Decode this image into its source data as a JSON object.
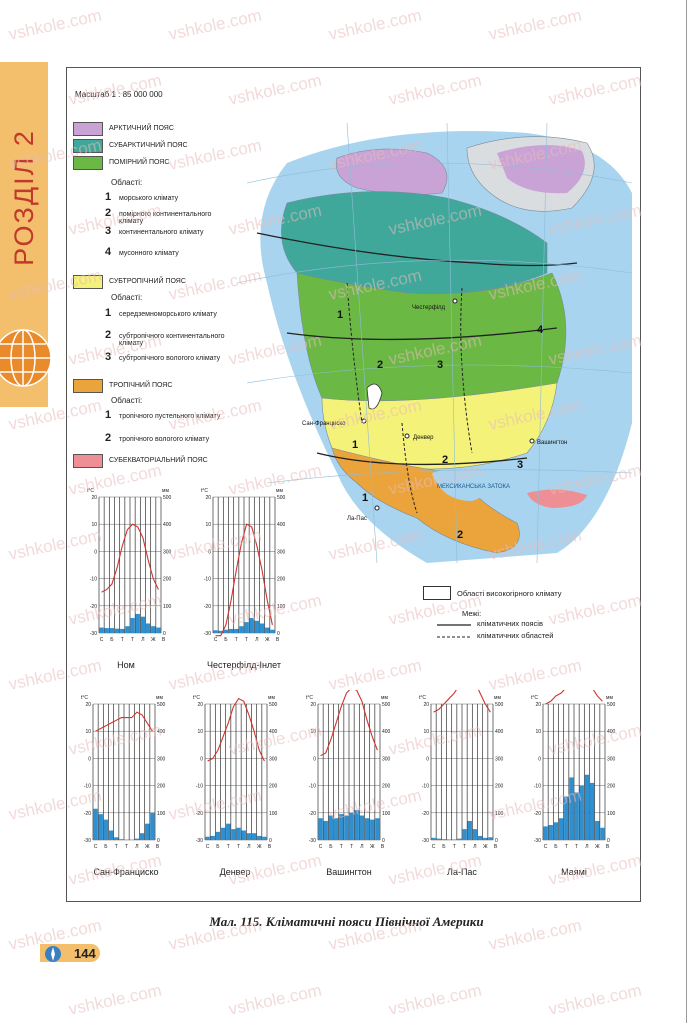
{
  "side_tab": {
    "label": "РОЗДІЛ 2"
  },
  "map": {
    "scale": "Масштаб 1 : 85 000 000",
    "legend": {
      "belts": [
        {
          "label": "АРКТИЧНИЙ ПОЯС",
          "color": "#c9a3d6"
        },
        {
          "label": "СУБАРКТИЧНИЙ ПОЯС",
          "color": "#3fa89b"
        },
        {
          "label": "ПОМІРНИЙ ПОЯС",
          "color": "#6cb845"
        },
        {
          "label": "СУБТРОПІЧНИЙ ПОЯС",
          "color": "#f4f279"
        },
        {
          "label": "ТРОПІЧНИЙ ПОЯС",
          "color": "#eba43b"
        },
        {
          "label": "СУБЕКВАТОРІАЛЬНИЙ ПОЯС",
          "color": "#ee8f96"
        }
      ],
      "regions_heading": "Області:",
      "temperate_regions": [
        {
          "num": "1",
          "label": "морського клімату"
        },
        {
          "num": "2",
          "label": "помірного континентального клімату"
        },
        {
          "num": "3",
          "label": "континентального клімату"
        },
        {
          "num": "4",
          "label": "мусонного клімату"
        }
      ],
      "subtropical_regions": [
        {
          "num": "1",
          "label": "середземноморського клімату"
        },
        {
          "num": "2",
          "label": "субтропічного континентального клімату"
        },
        {
          "num": "3",
          "label": "субтропічного вологого клімату"
        }
      ],
      "tropical_regions": [
        {
          "num": "1",
          "label": "тропічного пустельного клімату"
        },
        {
          "num": "2",
          "label": "тропічного вологого клімату"
        }
      ],
      "highland": "Області високогірного клімату",
      "boundaries_heading": "Межі:",
      "boundary_belts": "кліматичних поясів",
      "boundary_regions": "кліматичних областей"
    },
    "labels": {
      "city_chesterfield": "Честерфілд",
      "city_sf": "Сан-Франциско",
      "city_denver": "Денвер",
      "city_washington": "Вашингтон",
      "city_lv": "Ла-Пас",
      "gulf": "МЕКСИКАНСЬКА ЗАТОКА",
      "n1": "1",
      "n2": "2",
      "n3": "3",
      "n4": "4",
      "s1": "1",
      "s2": "2",
      "s3": "3",
      "t1": "1",
      "t2": "2"
    },
    "colors": {
      "ocean": "#a8d4ef",
      "arctic": "#c9a3d6",
      "subarctic": "#3fa89b",
      "temperate": "#6cb845",
      "subtropical": "#f4f279",
      "tropical": "#eba43b",
      "subequatorial": "#ee8f96",
      "land_grey": "#d9dde0"
    }
  },
  "climate_charts": {
    "t_unit": "t°C",
    "p_unit": "мм",
    "t_ticks": [
      "20",
      "10",
      "0",
      "-10",
      "-20",
      "-30"
    ],
    "p_ticks": [
      "500",
      "400",
      "300",
      "200",
      "100",
      "0"
    ],
    "months": [
      "С",
      "Б",
      "Т",
      "Т",
      "Л",
      "Ж",
      "В"
    ],
    "chart_data": [
      {
        "type": "bar",
        "title": "Ном",
        "temperature": [
          -15,
          -14,
          -12,
          -6,
          2,
          8,
          10,
          9,
          5,
          -3,
          -10,
          -14
        ],
        "precipitation": [
          20,
          18,
          18,
          16,
          15,
          25,
          55,
          70,
          60,
          35,
          25,
          20
        ],
        "t_range": [
          -30,
          20
        ],
        "p_range": [
          0,
          500
        ]
      },
      {
        "type": "bar",
        "title": "Честерфілд-Інлет",
        "temperature": [
          -31,
          -31,
          -27,
          -18,
          -7,
          3,
          10,
          9,
          2,
          -7,
          -18,
          -27
        ],
        "precipitation": [
          10,
          8,
          12,
          15,
          15,
          25,
          40,
          55,
          45,
          35,
          20,
          12
        ],
        "t_range": [
          -30,
          20
        ],
        "p_range": [
          0,
          500
        ]
      },
      {
        "type": "bar",
        "title": "Сан-Франциско",
        "temperature": [
          10,
          11,
          12,
          13,
          14,
          15,
          15,
          15,
          17,
          16,
          13,
          10
        ],
        "precipitation": [
          115,
          95,
          75,
          35,
          10,
          3,
          1,
          1,
          5,
          25,
          60,
          100
        ],
        "t_range": [
          -30,
          20
        ],
        "p_range": [
          0,
          500
        ]
      },
      {
        "type": "bar",
        "title": "Денвер",
        "temperature": [
          -1,
          0,
          3,
          8,
          13,
          19,
          22,
          21,
          16,
          10,
          3,
          -1
        ],
        "precipitation": [
          12,
          15,
          30,
          45,
          60,
          40,
          45,
          35,
          25,
          25,
          15,
          12
        ],
        "t_range": [
          -30,
          20
        ],
        "p_range": [
          0,
          500
        ]
      },
      {
        "type": "bar",
        "title": "Вашингтон",
        "temperature": [
          1,
          2,
          7,
          13,
          19,
          24,
          26,
          25,
          21,
          14,
          8,
          3
        ],
        "precipitation": [
          80,
          70,
          90,
          80,
          95,
          90,
          100,
          110,
          90,
          80,
          75,
          80
        ],
        "t_range": [
          -30,
          20
        ],
        "p_range": [
          0,
          500
        ]
      },
      {
        "type": "bar",
        "title": "Ла-Пас",
        "temperature": [
          17,
          18,
          20,
          22,
          24,
          27,
          30,
          30,
          28,
          24,
          20,
          17
        ],
        "precipitation": [
          8,
          5,
          3,
          2,
          2,
          5,
          40,
          70,
          40,
          15,
          8,
          10
        ],
        "t_range": [
          -30,
          20
        ],
        "p_range": [
          0,
          500
        ]
      },
      {
        "type": "bar",
        "title": "Маямі",
        "temperature": [
          20,
          21,
          23,
          24,
          26,
          27,
          28,
          28,
          28,
          26,
          23,
          21
        ],
        "precipitation": [
          50,
          55,
          65,
          80,
          160,
          230,
          175,
          200,
          240,
          210,
          70,
          45
        ],
        "t_range": [
          -30,
          20
        ],
        "p_range": [
          0,
          500
        ]
      }
    ]
  },
  "caption": "Мал. 115. Кліматичні пояси Північної Америки",
  "page_number": "144",
  "watermark": "vshkole.com"
}
